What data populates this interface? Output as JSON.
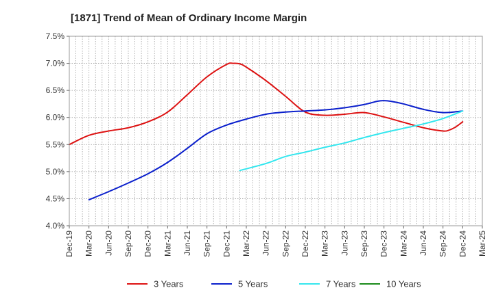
{
  "chart_data": {
    "type": "line",
    "title": "[1871]  Trend of Mean of Ordinary Income Margin",
    "xlabel": "",
    "ylabel": "",
    "x_tick_labels": [
      "Dec-19",
      "Mar-20",
      "Jun-20",
      "Sep-20",
      "Dec-20",
      "Mar-21",
      "Jun-21",
      "Sep-21",
      "Dec-21",
      "Mar-22",
      "Jun-22",
      "Sep-22",
      "Dec-22",
      "Mar-23",
      "Jun-23",
      "Sep-23",
      "Dec-23",
      "Mar-24",
      "Jun-24",
      "Sep-24",
      "Dec-24",
      "Mar-25"
    ],
    "y_tick_labels": [
      "4.0%",
      "4.5%",
      "5.0%",
      "5.5%",
      "6.0%",
      "6.5%",
      "7.0%",
      "7.5%"
    ],
    "ylim": [
      4.0,
      7.5
    ],
    "grid": true,
    "legend_position": "bottom",
    "series": [
      {
        "name": "3 Years",
        "color": "#dd1111",
        "x": [
          "Dec-19",
          "Mar-20",
          "Jun-20",
          "Sep-20",
          "Dec-20",
          "Mar-21",
          "Jun-21",
          "Sep-21",
          "Dec-21",
          "Jan-22",
          "Feb-22",
          "Mar-22",
          "Jun-22",
          "Sep-22",
          "Dec-22",
          "Mar-23",
          "Jun-23",
          "Sep-23",
          "Dec-23",
          "Mar-24",
          "Jun-24",
          "Sep-24",
          "Oct-24",
          "Nov-24",
          "Dec-24"
        ],
        "values": [
          5.5,
          5.67,
          5.75,
          5.81,
          5.92,
          6.1,
          6.42,
          6.75,
          6.98,
          7.0,
          6.99,
          6.93,
          6.68,
          6.39,
          6.1,
          6.04,
          6.06,
          6.09,
          6.01,
          5.91,
          5.81,
          5.75,
          5.77,
          5.83,
          5.92
        ]
      },
      {
        "name": "5 Years",
        "color": "#0a1fcc",
        "x": [
          "Dec-19",
          "Mar-20",
          "Jun-20",
          "Sep-20",
          "Dec-20",
          "Mar-21",
          "Jun-21",
          "Sep-21",
          "Dec-21",
          "Mar-22",
          "Jun-22",
          "Sep-22",
          "Dec-22",
          "Mar-23",
          "Jun-23",
          "Sep-23",
          "Nov-23",
          "Dec-23",
          "Jan-24",
          "Mar-24",
          "Jun-24",
          "Sep-24",
          "Dec-24"
        ],
        "values": [
          null,
          4.48,
          4.63,
          4.79,
          4.96,
          5.17,
          5.43,
          5.7,
          5.86,
          5.97,
          6.06,
          6.1,
          6.12,
          6.14,
          6.18,
          6.24,
          6.3,
          6.31,
          6.3,
          6.25,
          6.15,
          6.09,
          6.12
        ]
      },
      {
        "name": "7 Years",
        "color": "#33e6ee",
        "x": [
          "Feb-22",
          "Jun-22",
          "Sep-22",
          "Dec-22",
          "Mar-23",
          "Jun-23",
          "Sep-23",
          "Dec-23",
          "Mar-24",
          "Jun-24",
          "Sep-24",
          "Dec-24"
        ],
        "values": [
          5.02,
          5.15,
          5.28,
          5.36,
          5.45,
          5.53,
          5.63,
          5.72,
          5.8,
          5.88,
          5.98,
          6.12
        ]
      },
      {
        "name": "10 Years",
        "color": "#1a8a1a",
        "x": [],
        "values": []
      }
    ]
  }
}
